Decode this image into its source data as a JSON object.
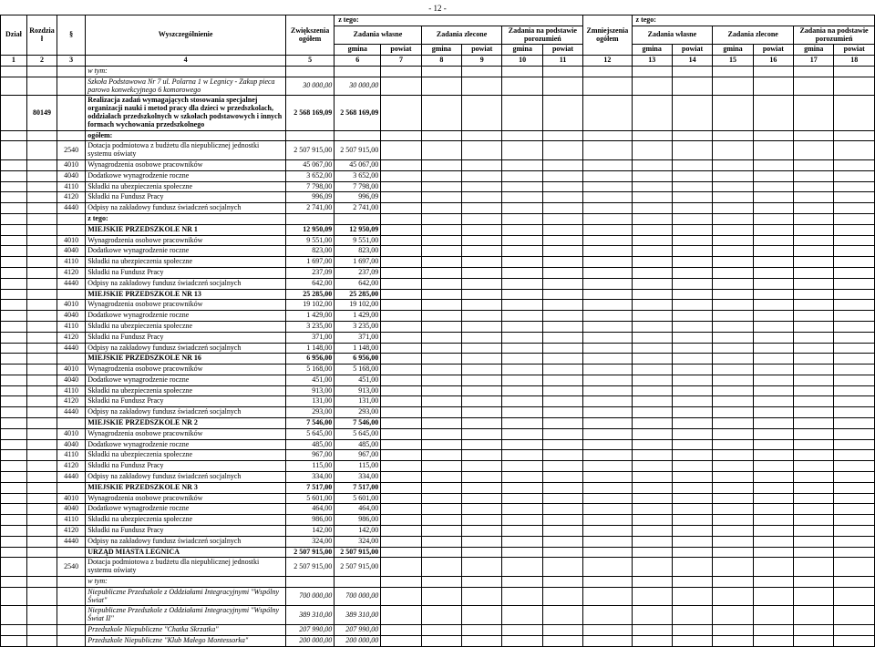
{
  "page_number": "- 12 -",
  "header": {
    "r1": {
      "dzial": "Dział",
      "rozdzial": "Rozdział",
      "par": "§",
      "wyszcz": "Wyszczególnienie",
      "zwiekszenia": "Zwiększenia ogółem",
      "ztego1": "z tego:",
      "zmniejszenia": "Zmniejszenia ogółem",
      "ztego2": "z tego:"
    },
    "r2": {
      "wlasne": "Zadania własne",
      "zlecone": "Zadania zlecone",
      "porozumien": "Zadania na podstawie porozumień"
    },
    "r3": {
      "gmina": "gmina",
      "powiat": "powiat"
    }
  },
  "rows": [
    {
      "c3": "",
      "c4": "w tym:",
      "i": true
    },
    {
      "c3": "",
      "c4": "Szkoła Podstawowa Nr 7 ul. Polarna 1 w Legnicy - Zakup pieca parowo konwekcyjnego 6 komorowego",
      "i": true,
      "v5": "30 000,00",
      "v6": "30 000,00"
    },
    {
      "c2": "80149",
      "c4": "Realizacja zadań wymagających stosowania specjalnej organizacji nauki i metod pracy dla dzieci w przedszkolach, oddziałach przedszkolnych w szkołach podstawowych i innych formach wychowania przedszkolnego",
      "b": true,
      "v5": "2 568 169,09",
      "v6": "2 568 169,09"
    },
    {
      "c3": "",
      "c4": "ogółem:",
      "b": true
    },
    {
      "c3": "2540",
      "c4": "Dotacja podmiotowa z budżetu dla niepublicznej jednostki systemu oświaty",
      "v5": "2 507 915,00",
      "v6": "2 507 915,00"
    },
    {
      "c3": "4010",
      "c4": "Wynagrodzenia osobowe pracowników",
      "v5": "45 067,00",
      "v6": "45 067,00"
    },
    {
      "c3": "4040",
      "c4": "Dodatkowe wynagrodzenie roczne",
      "v5": "3 652,00",
      "v6": "3 652,00"
    },
    {
      "c3": "4110",
      "c4": "Składki na ubezpieczenia społeczne",
      "v5": "7 798,00",
      "v6": "7 798,00"
    },
    {
      "c3": "4120",
      "c4": "Składki na Fundusz Pracy",
      "v5": "996,09",
      "v6": "996,09"
    },
    {
      "c3": "4440",
      "c4": "Odpisy na zakładowy fundusz świadczeń socjalnych",
      "v5": "2 741,00",
      "v6": "2 741,00"
    },
    {
      "c3": "",
      "c4": "z tego:",
      "b": true
    },
    {
      "c3": "",
      "c4": "MIEJSKIE PRZEDSZKOLE NR 1",
      "b": true,
      "v5": "12 950,09",
      "v6": "12 950,09"
    },
    {
      "c3": "4010",
      "c4": "Wynagrodzenia osobowe pracowników",
      "v5": "9 551,00",
      "v6": "9 551,00"
    },
    {
      "c3": "4040",
      "c4": "Dodatkowe wynagrodzenie roczne",
      "v5": "823,00",
      "v6": "823,00"
    },
    {
      "c3": "4110",
      "c4": "Składki na ubezpieczenia społeczne",
      "v5": "1 697,00",
      "v6": "1 697,00"
    },
    {
      "c3": "4120",
      "c4": "Składki na Fundusz Pracy",
      "v5": "237,09",
      "v6": "237,09"
    },
    {
      "c3": "4440",
      "c4": "Odpisy na zakładowy fundusz świadczeń socjalnych",
      "v5": "642,00",
      "v6": "642,00"
    },
    {
      "c3": "",
      "c4": "MIEJSKIE PRZEDSZKOLE NR 13",
      "b": true,
      "v5": "25 285,00",
      "v6": "25 285,00"
    },
    {
      "c3": "4010",
      "c4": "Wynagrodzenia osobowe pracowników",
      "v5": "19 102,00",
      "v6": "19 102,00"
    },
    {
      "c3": "4040",
      "c4": "Dodatkowe wynagrodzenie roczne",
      "v5": "1 429,00",
      "v6": "1 429,00"
    },
    {
      "c3": "4110",
      "c4": "Składki na ubezpieczenia społeczne",
      "v5": "3 235,00",
      "v6": "3 235,00"
    },
    {
      "c3": "4120",
      "c4": "Składki na Fundusz Pracy",
      "v5": "371,00",
      "v6": "371,00"
    },
    {
      "c3": "4440",
      "c4": "Odpisy na zakładowy fundusz świadczeń socjalnych",
      "v5": "1 148,00",
      "v6": "1 148,00"
    },
    {
      "c3": "",
      "c4": "MIEJSKIE PRZEDSZKOLE NR 16",
      "b": true,
      "v5": "6 956,00",
      "v6": "6 956,00"
    },
    {
      "c3": "4010",
      "c4": "Wynagrodzenia osobowe pracowników",
      "v5": "5 168,00",
      "v6": "5 168,00"
    },
    {
      "c3": "4040",
      "c4": "Dodatkowe wynagrodzenie roczne",
      "v5": "451,00",
      "v6": "451,00"
    },
    {
      "c3": "4110",
      "c4": "Składki na ubezpieczenia społeczne",
      "v5": "913,00",
      "v6": "913,00"
    },
    {
      "c3": "4120",
      "c4": "Składki na Fundusz Pracy",
      "v5": "131,00",
      "v6": "131,00"
    },
    {
      "c3": "4440",
      "c4": "Odpisy na zakładowy fundusz świadczeń socjalnych",
      "v5": "293,00",
      "v6": "293,00"
    },
    {
      "c3": "",
      "c4": "MIEJSKIE PRZEDSZKOLE NR 2",
      "b": true,
      "v5": "7 546,00",
      "v6": "7 546,00"
    },
    {
      "c3": "4010",
      "c4": "Wynagrodzenia osobowe pracowników",
      "v5": "5 645,00",
      "v6": "5 645,00"
    },
    {
      "c3": "4040",
      "c4": "Dodatkowe wynagrodzenie roczne",
      "v5": "485,00",
      "v6": "485,00"
    },
    {
      "c3": "4110",
      "c4": "Składki na ubezpieczenia społeczne",
      "v5": "967,00",
      "v6": "967,00"
    },
    {
      "c3": "4120",
      "c4": "Składki na Fundusz Pracy",
      "v5": "115,00",
      "v6": "115,00"
    },
    {
      "c3": "4440",
      "c4": "Odpisy na zakładowy fundusz świadczeń socjalnych",
      "v5": "334,00",
      "v6": "334,00"
    },
    {
      "c3": "",
      "c4": "MIEJSKIE PRZEDSZKOLE NR 3",
      "b": true,
      "v5": "7 517,00",
      "v6": "7 517,00"
    },
    {
      "c3": "4010",
      "c4": "Wynagrodzenia osobowe pracowników",
      "v5": "5 601,00",
      "v6": "5 601,00"
    },
    {
      "c3": "4040",
      "c4": "Dodatkowe wynagrodzenie roczne",
      "v5": "464,00",
      "v6": "464,00"
    },
    {
      "c3": "4110",
      "c4": "Składki na ubezpieczenia społeczne",
      "v5": "986,00",
      "v6": "986,00"
    },
    {
      "c3": "4120",
      "c4": "Składki na Fundusz Pracy",
      "v5": "142,00",
      "v6": "142,00"
    },
    {
      "c3": "4440",
      "c4": "Odpisy na zakładowy fundusz świadczeń socjalnych",
      "v5": "324,00",
      "v6": "324,00"
    },
    {
      "c3": "",
      "c4": "URZĄD MIASTA LEGNICA",
      "b": true,
      "v5": "2 507 915,00",
      "v6": "2 507 915,00"
    },
    {
      "c3": "2540",
      "c4": "Dotacja podmiotowa z budżetu dla niepublicznej jednostki systemu oświaty",
      "v5": "2 507 915,00",
      "v6": "2 507 915,00"
    },
    {
      "c3": "",
      "c4": "w tym:",
      "i": true
    },
    {
      "c3": "",
      "c4": "Niepubliczne Przedszkole z Oddziałami Integracyjnymi \"Wspólny Świat\"",
      "i": true,
      "v5": "700 000,00",
      "v6": "700 000,00"
    },
    {
      "c3": "",
      "c4": "Niepubliczne Przedszkole z Oddziałami Integracyjnymi \"Wspólny Świat II\"",
      "i": true,
      "v5": "389 310,00",
      "v6": "389 310,00"
    },
    {
      "c3": "",
      "c4": "Przedszkole Niepubliczne \"Chatka Skrzatka\"",
      "i": true,
      "v5": "207 990,00",
      "v6": "207 990,00"
    },
    {
      "c3": "",
      "c4": "Przedszkole Niepubliczne \"Klub Małego Montessorka\"",
      "i": true,
      "v5": "200 000,00",
      "v6": "200 000,00"
    }
  ]
}
